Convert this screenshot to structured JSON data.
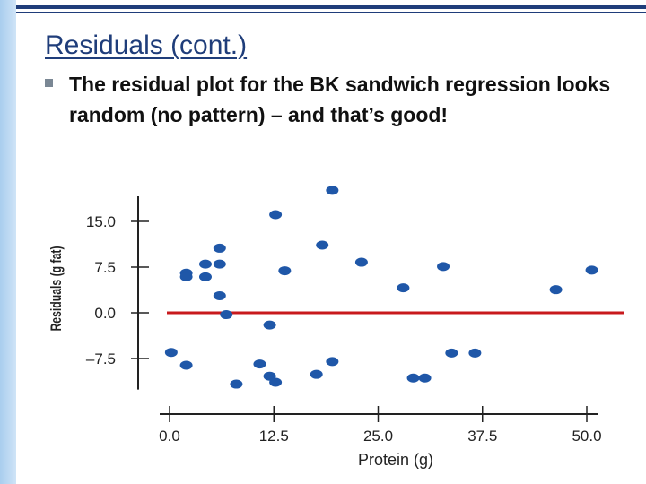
{
  "slide": {
    "title": "Residuals (cont.)",
    "bullet": "The residual plot for the BK sandwich regression looks random (no pattern) – and that’s good!"
  },
  "colors": {
    "title": "#1f3d7a",
    "points": "#1f57a8",
    "zero_line": "#c8191d",
    "axes": "#222222"
  },
  "chart_data": {
    "type": "scatter",
    "xlabel": "Protein (g)",
    "ylabel": "Residuals (g fat)",
    "xlim": [
      0,
      52
    ],
    "ylim": [
      -12,
      20
    ],
    "x_ticks": [
      0.0,
      12.5,
      25.0,
      37.5,
      50.0
    ],
    "x_tick_labels": [
      "0.0",
      "12.5",
      "25.0",
      "37.5",
      "50.0"
    ],
    "y_ticks": [
      15.0,
      7.5,
      0.0,
      -7.5
    ],
    "y_tick_labels": [
      "15.0",
      "7.5",
      "0.0",
      "–7.5"
    ],
    "reference_line_y": 0,
    "grid": false,
    "points": [
      {
        "x": 0.2,
        "y": -6.5
      },
      {
        "x": 2.0,
        "y": 6.5
      },
      {
        "x": 2.0,
        "y": 5.9
      },
      {
        "x": 2.0,
        "y": -8.6
      },
      {
        "x": 4.3,
        "y": 8.0
      },
      {
        "x": 4.3,
        "y": 5.9
      },
      {
        "x": 6.0,
        "y": 10.6
      },
      {
        "x": 6.0,
        "y": 8.0
      },
      {
        "x": 6.0,
        "y": 2.8
      },
      {
        "x": 6.8,
        "y": -0.3
      },
      {
        "x": 8.0,
        "y": -11.7
      },
      {
        "x": 10.8,
        "y": -8.4
      },
      {
        "x": 12.0,
        "y": -10.4
      },
      {
        "x": 12.0,
        "y": -2.0
      },
      {
        "x": 12.7,
        "y": 16.1
      },
      {
        "x": 12.7,
        "y": -11.4
      },
      {
        "x": 13.8,
        "y": 6.9
      },
      {
        "x": 17.6,
        "y": -10.1
      },
      {
        "x": 18.3,
        "y": 11.1
      },
      {
        "x": 19.5,
        "y": 20.1
      },
      {
        "x": 19.5,
        "y": -8.0
      },
      {
        "x": 23.0,
        "y": 8.3
      },
      {
        "x": 28.0,
        "y": 4.1
      },
      {
        "x": 29.2,
        "y": -10.7
      },
      {
        "x": 30.6,
        "y": -10.7
      },
      {
        "x": 32.8,
        "y": 7.6
      },
      {
        "x": 33.8,
        "y": -6.6
      },
      {
        "x": 36.6,
        "y": -6.6
      },
      {
        "x": 46.3,
        "y": 3.8
      },
      {
        "x": 50.6,
        "y": 7.0
      }
    ]
  }
}
